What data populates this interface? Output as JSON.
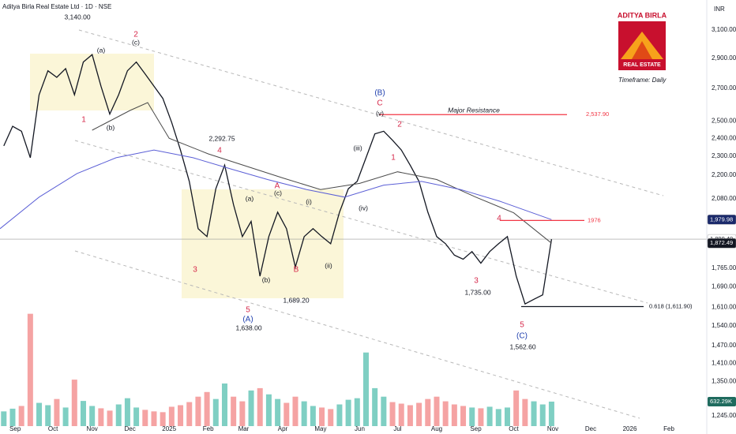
{
  "chart_data": {
    "type": "line",
    "title": "Aditya Birla Real Estate Ltd · 1D · NSE",
    "currency": "INR",
    "timeframe": "Timeframe: Daily",
    "logo": {
      "top": "ADITYA BIRLA",
      "bottom": "REAL ESTATE"
    },
    "log_scale": true,
    "grid": false,
    "xlim": [
      "2024-08-20",
      "2026-03-03"
    ],
    "ylim": [
      1215,
      3328
    ],
    "xticks": [
      {
        "value": "2024-09-01",
        "label": "Sep"
      },
      {
        "value": "2024-10-01",
        "label": "Oct"
      },
      {
        "value": "2024-11-01",
        "label": "Nov"
      },
      {
        "value": "2024-12-01",
        "label": "Dec"
      },
      {
        "value": "2025-01-01",
        "label": "2025"
      },
      {
        "value": "2025-02-01",
        "label": "Feb"
      },
      {
        "value": "2025-03-01",
        "label": "Mar"
      },
      {
        "value": "2025-04-01",
        "label": "Apr"
      },
      {
        "value": "2025-05-01",
        "label": "May"
      },
      {
        "value": "2025-06-01",
        "label": "Jun"
      },
      {
        "value": "2025-07-01",
        "label": "Jul"
      },
      {
        "value": "2025-08-01",
        "label": "Aug"
      },
      {
        "value": "2025-09-01",
        "label": "Sep"
      },
      {
        "value": "2025-10-01",
        "label": "Oct"
      },
      {
        "value": "2025-11-01",
        "label": "Nov"
      },
      {
        "value": "2025-12-01",
        "label": "Dec"
      },
      {
        "value": "2026-01-01",
        "label": "2026"
      },
      {
        "value": "2026-02-01",
        "label": "Feb"
      }
    ],
    "yticks": [
      {
        "value": 3100,
        "label": "3,100.00"
      },
      {
        "value": 2900,
        "label": "2,900.00"
      },
      {
        "value": 2700,
        "label": "2,700.00"
      },
      {
        "value": 2500,
        "label": "2,500.00"
      },
      {
        "value": 2400,
        "label": "2,400.00"
      },
      {
        "value": 2300,
        "label": "2,300.00"
      },
      {
        "value": 2200,
        "label": "2,200.00"
      },
      {
        "value": 2080,
        "label": "2,080.00"
      },
      {
        "value": 1765,
        "label": "1,765.00"
      },
      {
        "value": 1690,
        "label": "1,690.00"
      },
      {
        "value": 1610,
        "label": "1,610.00"
      },
      {
        "value": 1540,
        "label": "1,540.00"
      },
      {
        "value": 1470,
        "label": "1,470.00"
      },
      {
        "value": 1410,
        "label": "1,410.00"
      },
      {
        "value": 1350,
        "label": "1,350.00"
      },
      {
        "value": 1245,
        "label": "1,245.00"
      }
    ],
    "x": [
      "2024-08-23",
      "2024-08-30",
      "2024-09-06",
      "2024-09-13",
      "2024-09-20",
      "2024-09-27",
      "2024-10-04",
      "2024-10-11",
      "2024-10-18",
      "2024-10-25",
      "2024-11-01",
      "2024-11-08",
      "2024-11-15",
      "2024-11-22",
      "2024-11-29",
      "2024-12-06",
      "2024-12-13",
      "2024-12-20",
      "2024-12-27",
      "2025-01-03",
      "2025-01-10",
      "2025-01-17",
      "2025-01-24",
      "2025-01-31",
      "2025-02-07",
      "2025-02-14",
      "2025-02-21",
      "2025-02-28",
      "2025-03-07",
      "2025-03-14",
      "2025-03-21",
      "2025-03-28",
      "2025-04-04",
      "2025-04-11",
      "2025-04-18",
      "2025-04-25",
      "2025-05-02",
      "2025-05-09",
      "2025-05-16",
      "2025-05-23",
      "2025-05-30",
      "2025-06-06",
      "2025-06-13",
      "2025-06-20",
      "2025-06-27",
      "2025-07-04",
      "2025-07-11",
      "2025-07-18",
      "2025-07-25",
      "2025-08-01",
      "2025-08-08",
      "2025-08-15",
      "2025-08-22",
      "2025-08-29",
      "2025-09-05",
      "2025-09-12",
      "2025-09-19",
      "2025-09-26",
      "2025-10-03",
      "2025-10-10",
      "2025-10-17",
      "2025-10-24",
      "2025-10-31"
    ],
    "series": [
      {
        "color": "#131722",
        "values": [
          2357,
          2469,
          2440,
          2292,
          2660,
          2815,
          2772,
          2830,
          2660,
          2874,
          2925,
          2714,
          2541,
          2660,
          2815,
          2874,
          2794,
          2714,
          2637,
          2491,
          2334,
          2167,
          1938,
          1902,
          2130,
          2252,
          2051,
          1902,
          1972,
          1732,
          1902,
          2015,
          1938,
          1770,
          1902,
          1938,
          1902,
          1870,
          2015,
          2130,
          2167,
          2292,
          2425,
          2440,
          2389,
          2334,
          2252,
          2167,
          2015,
          1902,
          1870,
          1820,
          1803,
          1836,
          1786,
          1836,
          1870,
          1902,
          1732,
          1622,
          1640,
          1657,
          1890.4
        ]
      },
      {
        "color": "#4a4a4a",
        "x": [
          "2024-11-01",
          "2024-12-01",
          "2024-12-15",
          "2025-01-01",
          "2025-02-01",
          "2025-03-01",
          "2025-04-01",
          "2025-05-01",
          "2025-06-01",
          "2025-07-01",
          "2025-08-01",
          "2025-09-01",
          "2025-10-01",
          "2025-10-31"
        ],
        "values": [
          2446,
          2563,
          2611,
          2400,
          2313,
          2251,
          2185,
          2126,
          2157,
          2217,
          2177,
          2088,
          2012,
          1872.49
        ]
      },
      {
        "color": "#5b5fd6",
        "x": [
          "2024-08-20",
          "2024-09-20",
          "2024-10-20",
          "2024-11-20",
          "2024-12-20",
          "2025-01-20",
          "2025-02-20",
          "2025-03-20",
          "2025-04-20",
          "2025-05-20",
          "2025-06-20",
          "2025-07-20",
          "2025-08-20",
          "2025-09-20",
          "2025-10-31"
        ],
        "values": [
          1938,
          2088,
          2208,
          2292,
          2334,
          2292,
          2230,
          2177,
          2126,
          2088,
          2148,
          2167,
          2126,
          2068,
          1979.98
        ]
      }
    ],
    "volume": {
      "up_color": "#7fcfc3",
      "down_color": "#f5a3a3",
      "vlim": [
        0,
        11000000
      ],
      "values": [
        380000,
        450000,
        520000,
        2900000,
        600000,
        540000,
        700000,
        480000,
        1200000,
        650000,
        520000,
        460000,
        400000,
        560000,
        720000,
        480000,
        420000,
        380000,
        360000,
        500000,
        540000,
        620000,
        760000,
        880000,
        700000,
        1100000,
        760000,
        640000,
        920000,
        980000,
        820000,
        700000,
        600000,
        760000,
        640000,
        520000,
        480000,
        440000,
        560000,
        680000,
        720000,
        1900000,
        980000,
        760000,
        620000,
        580000,
        540000,
        600000,
        700000,
        760000,
        640000,
        560000,
        520000,
        480000,
        460000,
        500000,
        440000,
        480000,
        920000,
        700000,
        640000,
        560000,
        632290
      ],
      "tag": {
        "value": 632290,
        "label": "632.29K",
        "color": "#1f6b5e"
      }
    },
    "levels": [
      {
        "value": 2537.9,
        "label": "2,537.90",
        "color": "#f23645"
      },
      {
        "value": 1976,
        "label": "1976",
        "color": "#f23645"
      },
      {
        "value": 1611.9,
        "label": "0.618 (1,611.90)",
        "color": "#131722"
      }
    ],
    "price_tags": [
      {
        "value": 1979.98,
        "label": "1,979.98",
        "color": "#1b2a6b",
        "text_color": "#ffffff"
      },
      {
        "value": 1890.4,
        "label": "1,890.40",
        "color": "#ffffff",
        "text_color": "#131722"
      },
      {
        "value": 1872.49,
        "label": "1,872.49",
        "color": "#131722",
        "text_color": "#ffffff"
      }
    ],
    "annotations": [
      "3,140.00",
      "(a)",
      "(c)",
      "2",
      "1",
      "(b)",
      "2,292.75",
      "4",
      "3",
      "(a)",
      "(c)",
      "A",
      "(i)",
      "(b)",
      "B",
      "(ii)",
      "5",
      "(A)",
      "1,638.00",
      "1,689.20",
      "(B)",
      "C",
      "(v)",
      "2",
      "(iii)",
      "1",
      "(iv)",
      "Major Resistance",
      "4",
      "3",
      "1,735.00",
      "5",
      "(C)",
      "1,562.60"
    ]
  }
}
